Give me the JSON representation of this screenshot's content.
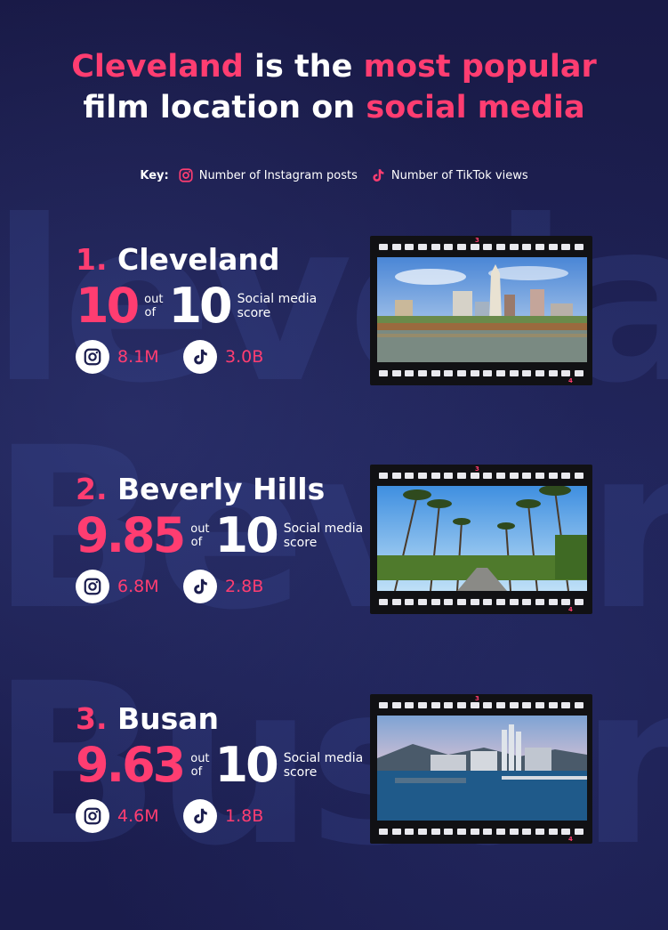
{
  "title": {
    "part1": "Cleveland",
    "part2": " is the ",
    "part3": "most popular",
    "part4": "film location on ",
    "part5": "social media"
  },
  "key": {
    "label": "Key:",
    "instagram": "Number of Instagram posts",
    "tiktok": "Number of TikTok views"
  },
  "colors": {
    "accent": "#ff3d71",
    "background": "#1b1d4e"
  },
  "common": {
    "out": "out",
    "of": "of",
    "max": "10",
    "score_label_1": "Social media",
    "score_label_2": "score"
  },
  "locations": [
    {
      "rank": "1.",
      "name": "Cleveland",
      "score": "10",
      "instagram": "8.1M",
      "tiktok": "3.0B",
      "icon_instagram": "instagram-icon",
      "icon_tiktok": "tiktok-icon"
    },
    {
      "rank": "2.",
      "name": "Beverly Hills",
      "score": "9.85",
      "instagram": "6.8M",
      "tiktok": "2.8B",
      "icon_instagram": "instagram-icon",
      "icon_tiktok": "tiktok-icon"
    },
    {
      "rank": "3.",
      "name": "Busan",
      "score": "9.63",
      "instagram": "4.6M",
      "tiktok": "1.8B",
      "icon_instagram": "instagram-icon",
      "icon_tiktok": "tiktok-icon"
    }
  ],
  "film_marks": [
    "3",
    "4"
  ],
  "watermarks": [
    "leveland",
    "Beverly",
    "Busan"
  ]
}
